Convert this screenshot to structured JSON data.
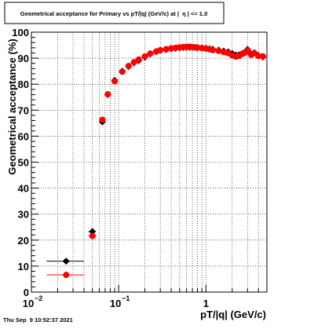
{
  "chart_data": {
    "type": "scatter",
    "title": "Geometrical acceptance for Primary vs pT/|q| (GeV/c) at |  η | <= 1.0",
    "xlabel": "pT/|q| (GeV/c)",
    "ylabel": "Geometrical acceptance (%)",
    "x_scale": "log",
    "xlim": [
      0.01,
      5.0
    ],
    "ylim": [
      0,
      100
    ],
    "grid": true,
    "y_ticks": [
      0,
      10,
      20,
      30,
      40,
      50,
      60,
      70,
      80,
      90,
      100
    ],
    "y_tick_labels": [
      "0",
      "10",
      "20",
      "30",
      "40",
      "50",
      "60",
      "70",
      "80",
      "90",
      "100"
    ],
    "x_tick_labels": [
      {
        "base": "10",
        "exp": "−2",
        "value": 0.01
      },
      {
        "base": "10",
        "exp": "−1",
        "value": 0.1
      },
      {
        "base": "1",
        "exp": "",
        "value": 1
      }
    ],
    "series": [
      {
        "color": "#000000",
        "x": [
          0.025,
          0.05,
          0.065,
          0.075,
          0.09,
          0.11,
          0.13,
          0.15,
          0.17,
          0.2,
          0.23,
          0.27,
          0.3,
          0.35,
          0.4,
          0.45,
          0.5,
          0.55,
          0.6,
          0.65,
          0.7,
          0.75,
          0.8,
          0.9,
          1.0,
          1.1,
          1.2,
          1.4,
          1.6,
          1.8,
          2.0,
          2.2,
          2.4,
          2.6,
          2.8,
          3.0,
          3.3,
          3.6,
          4.0,
          4.5
        ],
        "y": [
          11.9,
          23.3,
          65.5,
          76,
          81.5,
          85,
          86.8,
          88.2,
          89.1,
          90.4,
          91.6,
          92.5,
          93,
          93.3,
          93.6,
          93.8,
          94,
          94.1,
          94.2,
          94.2,
          94.2,
          94.1,
          94,
          93.9,
          93.8,
          93.6,
          93.4,
          93.1,
          92.7,
          92.4,
          91.8,
          91.2,
          91.3,
          91.8,
          92.3,
          93.4,
          91.6,
          92.1,
          91,
          90.5
        ],
        "xerr_low": [
          0.01,
          0.005,
          0.0,
          0.0,
          0.005,
          0.0,
          0.0,
          0.0,
          0.0,
          0.0,
          0.0,
          0.0,
          0.0,
          0.0,
          0.0,
          0.0,
          0.0,
          0.0,
          0.0,
          0.0,
          0.0,
          0.0,
          0.0,
          0.0,
          0.0,
          0.0,
          0.0,
          0.0,
          0.0,
          0.0,
          0.0,
          0.0,
          0.0,
          0.0,
          0.0,
          0.0,
          0.0,
          0.0,
          0.0,
          0.0
        ],
        "xerr_high": [
          0.015,
          0.005,
          0.0,
          0.0,
          0.005,
          0.0,
          0.0,
          0.0,
          0.0,
          0.0,
          0.0,
          0.0,
          0.0,
          0.0,
          0.0,
          0.0,
          0.0,
          0.0,
          0.0,
          0.0,
          0.0,
          0.0,
          0.0,
          0.0,
          0.0,
          0.0,
          0.0,
          0.0,
          0.0,
          0.0,
          0.0,
          0.0,
          0.0,
          0.0,
          0.0,
          0.0,
          0.0,
          0.0,
          0.0,
          0.0
        ],
        "marker": "diamond"
      },
      {
        "color": "#ff0000",
        "x": [
          0.025,
          0.05,
          0.065,
          0.075,
          0.09,
          0.11,
          0.13,
          0.15,
          0.17,
          0.2,
          0.23,
          0.27,
          0.3,
          0.35,
          0.4,
          0.45,
          0.5,
          0.55,
          0.6,
          0.65,
          0.7,
          0.75,
          0.8,
          0.9,
          1.0,
          1.1,
          1.2,
          1.4,
          1.6,
          1.8,
          2.0,
          2.2,
          2.4,
          2.6,
          2.8,
          3.0,
          3.3,
          3.6,
          4.0,
          4.5
        ],
        "y": [
          6.6,
          21.6,
          66.3,
          76.1,
          81.1,
          84.8,
          87,
          88.5,
          89.5,
          90.7,
          91.8,
          92.6,
          93.1,
          93.5,
          93.8,
          94,
          94.2,
          94.3,
          94.4,
          94.4,
          94.3,
          94.2,
          94.1,
          93.9,
          93.7,
          93.4,
          93.1,
          92.8,
          92.3,
          91.9,
          91.1,
          90.6,
          90.9,
          91.6,
          92.1,
          93.0,
          91.3,
          91.9,
          90.8,
          90.7
        ],
        "xerr_low": [
          0.01,
          0.005,
          0.0,
          0.0,
          0.005,
          0.0,
          0.0,
          0.0,
          0.0,
          0.0,
          0.0,
          0.0,
          0.0,
          0.0,
          0.0,
          0.0,
          0.0,
          0.0,
          0.0,
          0.0,
          0.0,
          0.0,
          0.0,
          0.0,
          0.0,
          0.0,
          0.0,
          0.0,
          0.0,
          0.0,
          0.0,
          0.0,
          0.0,
          0.0,
          0.0,
          0.0,
          0.0,
          0.0,
          0.0,
          0.0
        ],
        "xerr_high": [
          0.015,
          0.005,
          0.0,
          0.0,
          0.005,
          0.0,
          0.0,
          0.0,
          0.0,
          0.0,
          0.0,
          0.0,
          0.0,
          0.0,
          0.0,
          0.0,
          0.0,
          0.0,
          0.0,
          0.0,
          0.0,
          0.0,
          0.0,
          0.0,
          0.0,
          0.0,
          0.0,
          0.0,
          0.0,
          0.0,
          0.0,
          0.0,
          0.0,
          0.0,
          0.0,
          0.0,
          0.0,
          0.0,
          0.0,
          0.0
        ],
        "marker": "circle"
      }
    ]
  },
  "footer": {
    "timestamp": "Thu Sep  9 10:52:37 2021"
  }
}
